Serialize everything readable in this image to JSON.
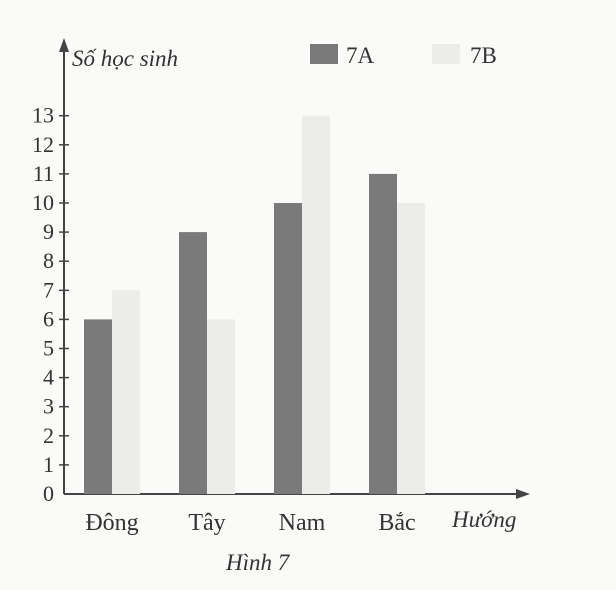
{
  "chart_data": {
    "type": "bar",
    "categories": [
      "Đông",
      "Tây",
      "Nam",
      "Bắc"
    ],
    "series": [
      {
        "name": "7A",
        "values": [
          6,
          9,
          10,
          11
        ],
        "color": "#7a7a7a"
      },
      {
        "name": "7B",
        "values": [
          7,
          6,
          13,
          10
        ],
        "color": "#ececea"
      }
    ],
    "ylabel": "Số học sinh",
    "xlabel": "Hướng",
    "caption": "Hình 7",
    "ylim": [
      0,
      13
    ],
    "yticks": [
      0,
      1,
      2,
      3,
      4,
      5,
      6,
      7,
      8,
      9,
      10,
      11,
      12,
      13
    ],
    "grid": false,
    "legend": "top"
  }
}
